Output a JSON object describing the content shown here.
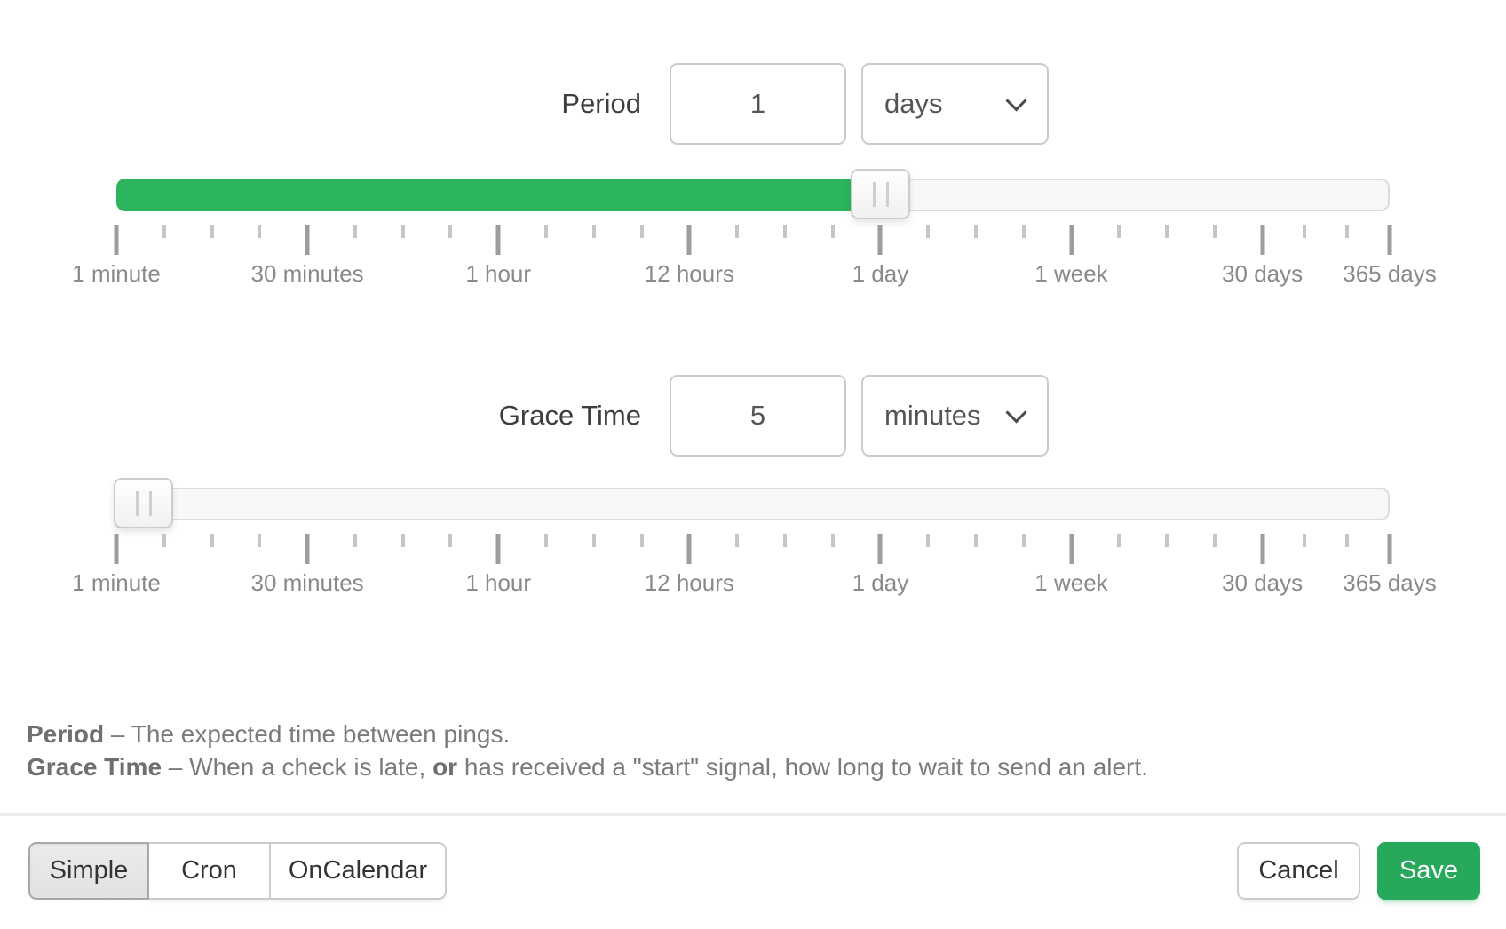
{
  "period_row": {
    "label": "Period",
    "value": "1",
    "unit": "days",
    "slider_percent": 60
  },
  "grace_row": {
    "label": "Grace Time",
    "value": "5",
    "unit": "minutes",
    "slider_percent": 2.1
  },
  "scale": {
    "major_labels": [
      "1 minute",
      "30 minutes",
      "1 hour",
      "12 hours",
      "1 day",
      "1 week",
      "30 days",
      "365 days"
    ],
    "major_percents": [
      0,
      15,
      30,
      45,
      60,
      75,
      90,
      100
    ],
    "minor_step_percent": 3.75,
    "tail_percents": [
      93.333,
      96.667
    ]
  },
  "help_lines": [
    {
      "segments": [
        {
          "text": "Period",
          "bold": true
        },
        {
          "text": " – The expected time between pings.",
          "bold": false
        }
      ]
    },
    {
      "segments": [
        {
          "text": "Grace Time",
          "bold": true
        },
        {
          "text": " – When a check is late, ",
          "bold": false
        },
        {
          "text": "or",
          "bold": true
        },
        {
          "text": " has received a \"start\" signal, how long to wait to send an alert.",
          "bold": false
        }
      ]
    }
  ],
  "footer": {
    "mode_tabs": [
      {
        "label": "Simple",
        "active": true
      },
      {
        "label": "Cron",
        "active": false
      },
      {
        "label": "OnCalendar",
        "active": false
      }
    ],
    "cancel_label": "Cancel",
    "save_label": "Save"
  },
  "colors": {
    "slider_fill": "#2cb45c",
    "save_button": "#27a95c"
  }
}
